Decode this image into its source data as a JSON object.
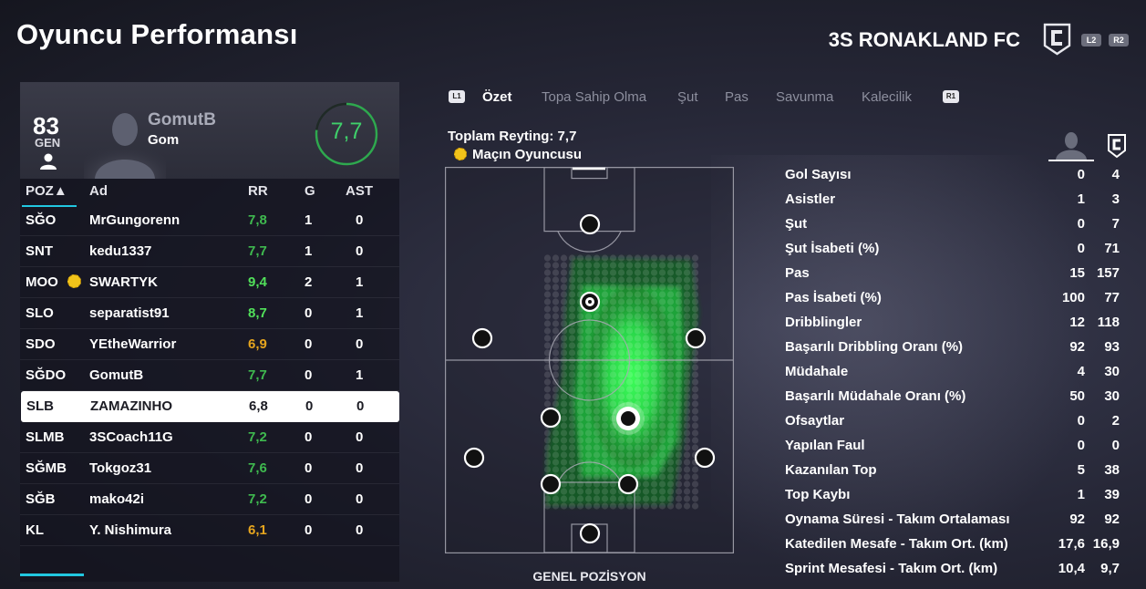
{
  "header": {
    "title": "Oyuncu Performansı",
    "team_name": "3S RONAKLAND FC",
    "btn_l2": "L2",
    "btn_r2": "R2"
  },
  "player_card": {
    "overall": "83",
    "overall_label": "GEN",
    "name": "GomutB",
    "nickname": "Gom",
    "rating": "7,7",
    "rating_fraction": 0.77
  },
  "table": {
    "headers": {
      "pos": "POZ▲",
      "name": "Ad",
      "rr": "RR",
      "g": "G",
      "ast": "AST"
    },
    "rows": [
      {
        "pos": "SĞO",
        "name": "MrGungorenn",
        "rr": "7,8",
        "g": "1",
        "ast": "0",
        "rr_color": "#3fb94f"
      },
      {
        "pos": "SNT",
        "name": "kedu1337",
        "rr": "7,7",
        "g": "1",
        "ast": "0",
        "rr_color": "#3fb94f"
      },
      {
        "pos": "MOO",
        "name": "SWARTYK",
        "rr": "9,4",
        "g": "2",
        "ast": "1",
        "rr_color": "#51e05a",
        "motm": true
      },
      {
        "pos": "SLO",
        "name": "separatist91",
        "rr": "8,7",
        "g": "0",
        "ast": "1",
        "rr_color": "#51e05a"
      },
      {
        "pos": "SDO",
        "name": "YEtheWarrior",
        "rr": "6,9",
        "g": "0",
        "ast": "0",
        "rr_color": "#e6a51e"
      },
      {
        "pos": "SĞDO",
        "name": "GomutB",
        "rr": "7,7",
        "g": "0",
        "ast": "1",
        "rr_color": "#3fb94f"
      },
      {
        "pos": "SLB",
        "name": "ZAMAZINHO",
        "rr": "6,8",
        "g": "0",
        "ast": "0",
        "rr_color": "#1c1c24",
        "selected": true
      },
      {
        "pos": "SLMB",
        "name": "3SCoach11G",
        "rr": "7,2",
        "g": "0",
        "ast": "0",
        "rr_color": "#3fb94f"
      },
      {
        "pos": "SĞMB",
        "name": "Tokgoz31",
        "rr": "7,6",
        "g": "0",
        "ast": "0",
        "rr_color": "#3fb94f"
      },
      {
        "pos": "SĞB",
        "name": "mako42i",
        "rr": "7,2",
        "g": "0",
        "ast": "0",
        "rr_color": "#3fb94f"
      },
      {
        "pos": "KL",
        "name": "Y. Nishimura",
        "rr": "6,1",
        "g": "0",
        "ast": "0",
        "rr_color": "#e6a51e"
      }
    ]
  },
  "tabs": {
    "l1": "L1",
    "r1": "R1",
    "items": [
      "Özet",
      "Topa Sahip Olma",
      "Şut",
      "Pas",
      "Savunma",
      "Kalecilik"
    ],
    "active_index": 0
  },
  "summary": {
    "total_rating": "Toplam Reyting: 7,7",
    "motm": "Maçın Oyuncusu",
    "pitch_label": "GENEL POZİSYON"
  },
  "stats": [
    {
      "label": "Gol Sayısı",
      "player": "0",
      "team": "4"
    },
    {
      "label": "Asistler",
      "player": "1",
      "team": "3"
    },
    {
      "label": "Şut",
      "player": "0",
      "team": "7"
    },
    {
      "label": "Şut İsabeti (%)",
      "player": "0",
      "team": "71"
    },
    {
      "label": "Pas",
      "player": "15",
      "team": "157"
    },
    {
      "label": "Pas İsabeti (%)",
      "player": "100",
      "team": "77"
    },
    {
      "label": "Dribblingler",
      "player": "12",
      "team": "118"
    },
    {
      "label": "Başarılı Dribbling Oranı (%)",
      "player": "92",
      "team": "93"
    },
    {
      "label": "Müdahale",
      "player": "4",
      "team": "30"
    },
    {
      "label": "Başarılı Müdahale Oranı (%)",
      "player": "50",
      "team": "30"
    },
    {
      "label": "Ofsaytlar",
      "player": "0",
      "team": "2"
    },
    {
      "label": "Yapılan Faul",
      "player": "0",
      "team": "0"
    },
    {
      "label": "Kazanılan Top",
      "player": "5",
      "team": "38"
    },
    {
      "label": "Top Kaybı",
      "player": "1",
      "team": "39"
    },
    {
      "label": "Oynama Süresi - Takım Ortalaması",
      "player": "92",
      "team": "92"
    },
    {
      "label": "Katedilen Mesafe - Takım Ort. (km)",
      "player": "17,6",
      "team": "16,9"
    },
    {
      "label": "Sprint Mesafesi - Takım Ort. (km)",
      "player": "10,4",
      "team": "9,7"
    }
  ],
  "colors": {
    "accent": "#21c7e0",
    "rating_green": "#3fd06a",
    "heat_green": "#3dff5a"
  }
}
